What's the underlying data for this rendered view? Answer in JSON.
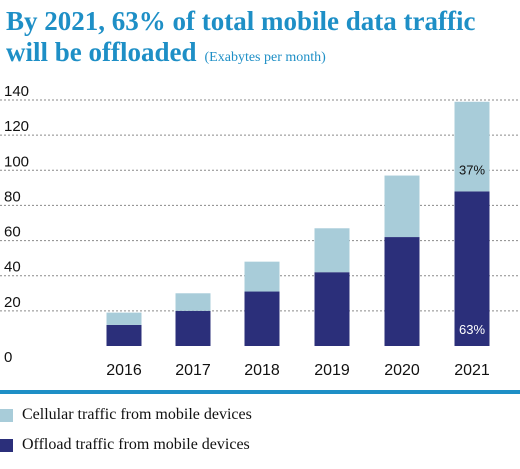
{
  "title": {
    "main": "By 2021, 63% of total mobile data traffic will be offloaded",
    "unit": "(Exabytes per month)"
  },
  "colors": {
    "accent": "#1e8fc6",
    "cellular": "#a8ccd9",
    "offload": "#2b2f7a"
  },
  "chart_data": {
    "type": "bar",
    "stacked": true,
    "categories": [
      "2016",
      "2017",
      "2018",
      "2019",
      "2020",
      "2021"
    ],
    "series": [
      {
        "name": "Offload traffic from mobile devices",
        "values": [
          12,
          20,
          31,
          42,
          62,
          88
        ]
      },
      {
        "name": "Cellular traffic from mobile devices",
        "values": [
          7,
          10,
          17,
          25,
          35,
          51
        ]
      }
    ],
    "ylim": [
      0,
      140
    ],
    "yticks": [
      0,
      20,
      40,
      60,
      80,
      100,
      120,
      140
    ],
    "grid": true,
    "legend_position": "bottom-left",
    "annotations": [
      {
        "category": "2021",
        "series": "Cellular traffic from mobile devices",
        "text": "37%"
      },
      {
        "category": "2021",
        "series": "Offload traffic from mobile devices",
        "text": "63%"
      }
    ]
  },
  "legend": [
    {
      "label": "Cellular traffic from mobile devices",
      "color": "#a8ccd9"
    },
    {
      "label": "Offload traffic from mobile devices",
      "color": "#2b2f7a"
    }
  ]
}
